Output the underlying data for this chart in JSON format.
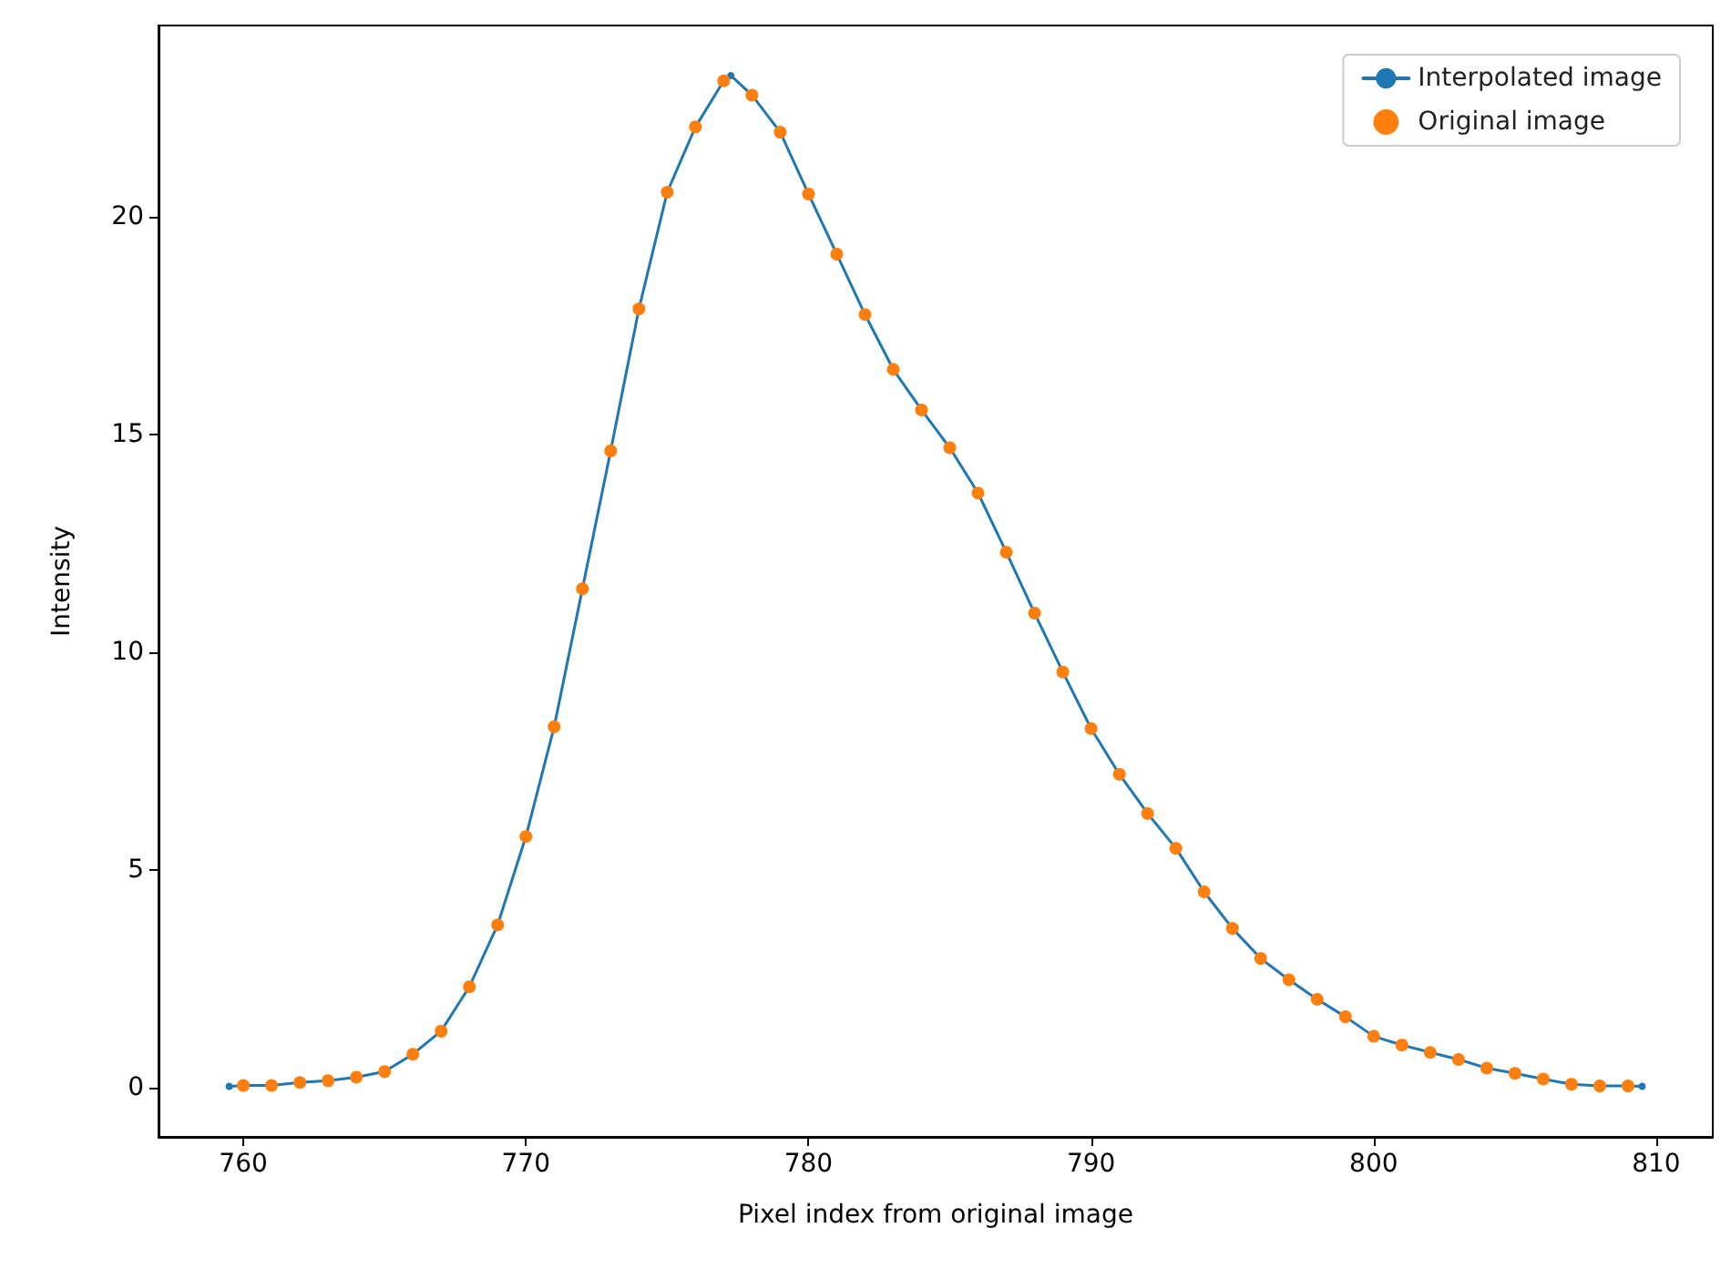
{
  "chart_data": {
    "type": "line",
    "xlabel": "Pixel index from original image",
    "ylabel": "Intensity",
    "xlim": [
      757,
      812
    ],
    "ylim": [
      -1.13,
      24.4
    ],
    "xticks": [
      760,
      770,
      780,
      790,
      800,
      810
    ],
    "yticks": [
      0,
      5,
      10,
      15,
      20
    ],
    "grid": false,
    "legend": "top right",
    "series": [
      {
        "name": "Interpolated image",
        "marker": "circle",
        "line_style": "solid",
        "color": "#1f77b4",
        "x": [
          759.5,
          760,
          761,
          762,
          763,
          764,
          765,
          766,
          767,
          768,
          769,
          770,
          771,
          772,
          773,
          774,
          775,
          776,
          777,
          777.25,
          778,
          779,
          780,
          781,
          782,
          783,
          784,
          785,
          786,
          787,
          788,
          789,
          790,
          791,
          792,
          793,
          794,
          795,
          796,
          797,
          798,
          799,
          800,
          801,
          802,
          803,
          804,
          805,
          806,
          807,
          808,
          809,
          809.5
        ],
        "values": [
          0.03,
          0.05,
          0.05,
          0.12,
          0.16,
          0.24,
          0.37,
          0.77,
          1.3,
          2.32,
          3.74,
          5.77,
          8.29,
          11.46,
          14.63,
          17.89,
          20.57,
          22.07,
          23.13,
          23.25,
          22.8,
          21.95,
          20.53,
          19.15,
          17.76,
          16.5,
          15.57,
          14.7,
          13.66,
          12.3,
          10.9,
          9.55,
          8.25,
          7.2,
          6.3,
          5.5,
          4.5,
          3.66,
          2.97,
          2.48,
          2.03,
          1.63,
          1.18,
          0.98,
          0.81,
          0.65,
          0.45,
          0.33,
          0.2,
          0.08,
          0.04,
          0.04,
          0.03
        ]
      },
      {
        "name": "Original image",
        "type": "scatter",
        "marker": "circle",
        "color": "#ff7f0e",
        "x": [
          760,
          761,
          762,
          763,
          764,
          765,
          766,
          767,
          768,
          769,
          770,
          771,
          772,
          773,
          774,
          775,
          776,
          777,
          778,
          779,
          780,
          781,
          782,
          783,
          784,
          785,
          786,
          787,
          788,
          789,
          790,
          791,
          792,
          793,
          794,
          795,
          796,
          797,
          798,
          799,
          800,
          801,
          802,
          803,
          804,
          805,
          806,
          807,
          808,
          809
        ],
        "values": [
          0.05,
          0.05,
          0.12,
          0.16,
          0.24,
          0.37,
          0.77,
          1.3,
          2.32,
          3.74,
          5.77,
          8.29,
          11.46,
          14.63,
          17.89,
          20.57,
          22.07,
          23.13,
          22.8,
          21.95,
          20.53,
          19.15,
          17.76,
          16.5,
          15.57,
          14.7,
          13.66,
          12.3,
          10.9,
          9.55,
          8.25,
          7.2,
          6.3,
          5.5,
          4.5,
          3.66,
          2.97,
          2.48,
          2.03,
          1.63,
          1.18,
          0.98,
          0.81,
          0.65,
          0.45,
          0.33,
          0.2,
          0.08,
          0.04,
          0.04
        ]
      }
    ]
  }
}
